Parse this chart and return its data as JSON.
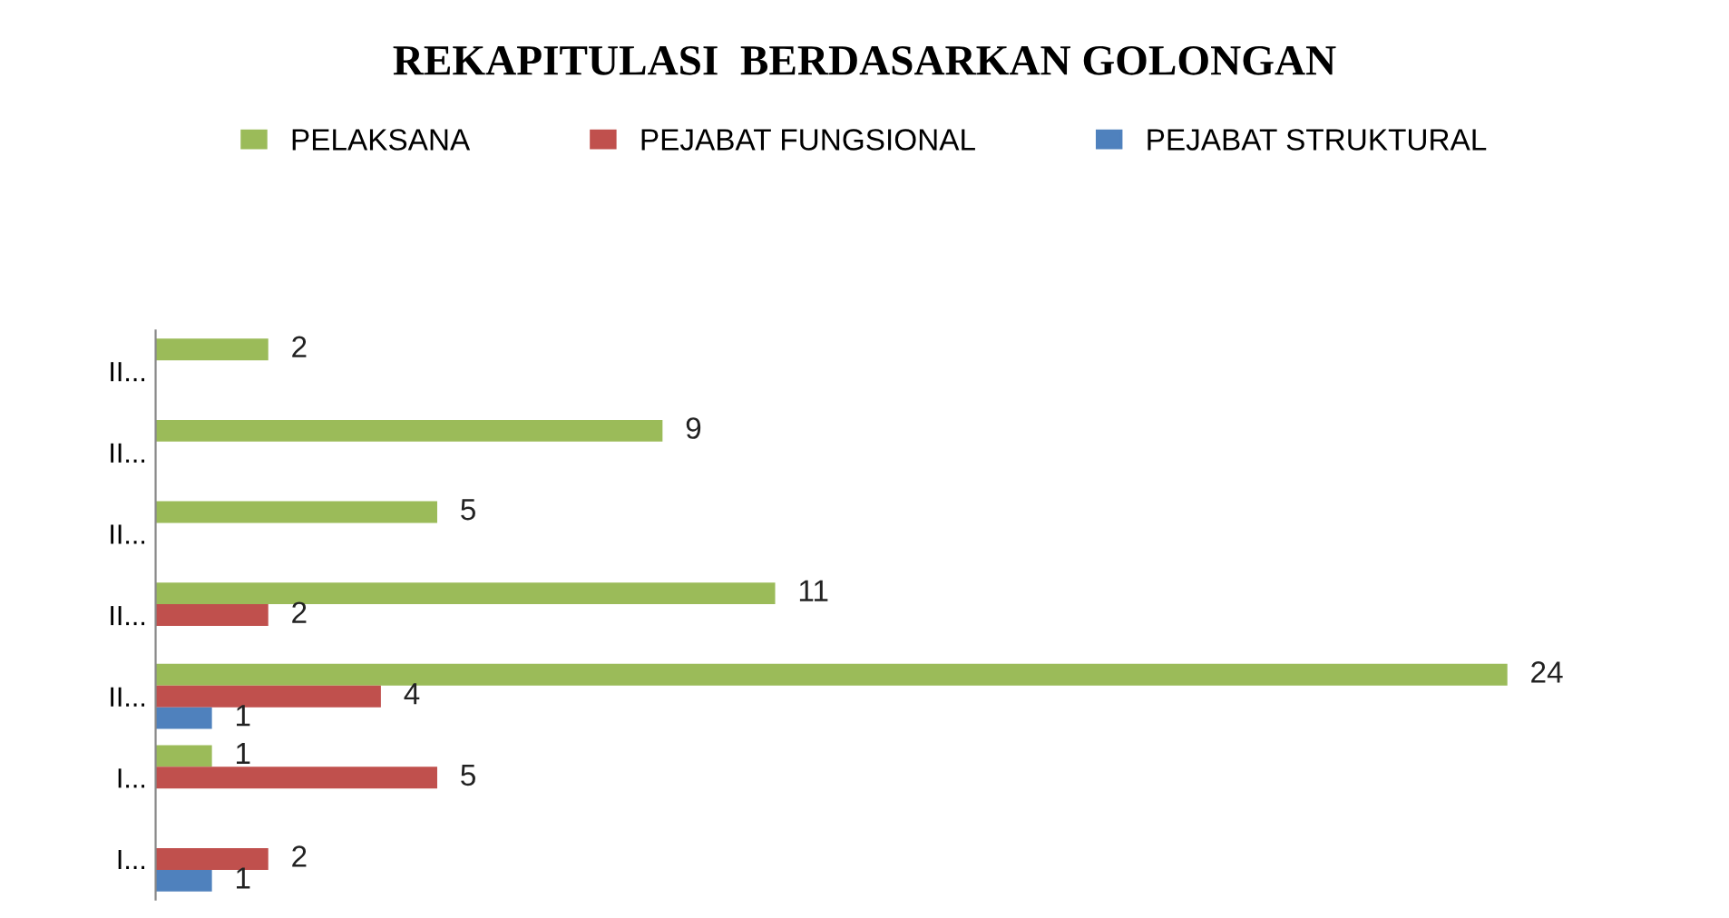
{
  "chart_data": {
    "type": "bar",
    "orientation": "horizontal",
    "title": "REKAPITULASI  BERDASARKAN GOLONGAN",
    "categories": [
      "II...",
      "II...",
      "II...",
      "II...",
      "II...",
      "I...",
      "I..."
    ],
    "series": [
      {
        "name": "PELAKSANA",
        "color": "#9bbb59",
        "values": [
          2,
          9,
          5,
          11,
          24,
          1,
          null
        ]
      },
      {
        "name": "PEJABAT FUNGSIONAL",
        "color": "#c0504d",
        "values": [
          null,
          null,
          null,
          2,
          4,
          5,
          2
        ]
      },
      {
        "name": "PEJABAT STRUKTURAL",
        "color": "#4f81bd",
        "values": [
          null,
          null,
          null,
          null,
          1,
          null,
          1
        ]
      }
    ],
    "data_labels": true,
    "legend": "top",
    "grid": false,
    "tick_labels": "y"
  }
}
